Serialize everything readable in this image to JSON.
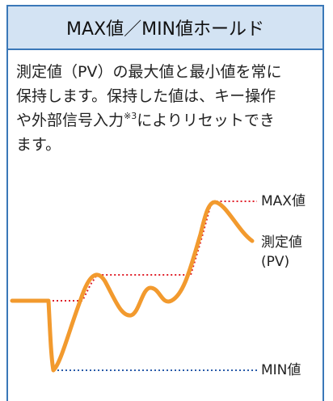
{
  "header": {
    "title": "MAX値／MIN値ホールド"
  },
  "body": {
    "line1": "測定値（PV）の最大値と最小値を常に",
    "line2": "保持します。保持した値は、キー操作",
    "line3": {
      "before": "や外部信号入力",
      "sup": "※3",
      "after": "によりリセットでき"
    },
    "line4": "ます。"
  },
  "diagram": {
    "max_label": "MAX値",
    "pv_label": "測定値",
    "pv_sub": "(PV)",
    "min_label": "MIN値"
  }
}
